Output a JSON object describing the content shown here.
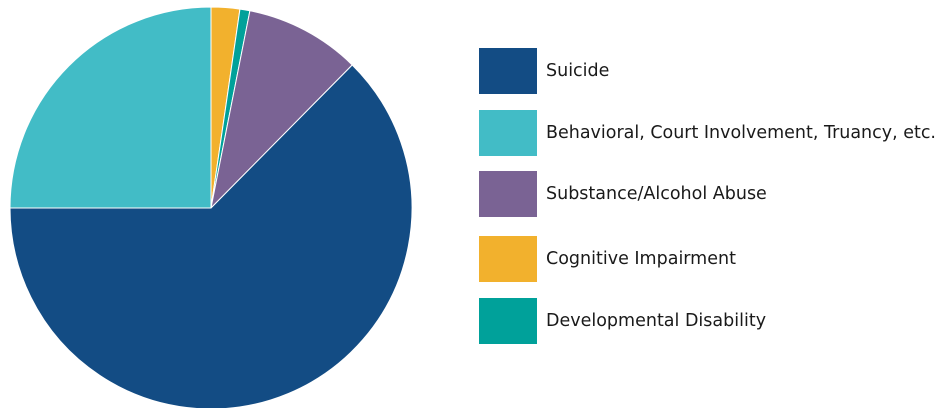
{
  "chart_data": {
    "type": "pie",
    "title": "",
    "slices": [
      {
        "label": "Cognitive Impairment",
        "value": 2.3,
        "color": "#f2b12d"
      },
      {
        "label": "Developmental Disability",
        "value": 0.8,
        "color": "#00a19a"
      },
      {
        "label": "Substance/Alcohol Abuse",
        "value": 9.3,
        "color": "#7a6394"
      },
      {
        "label": "Suicide",
        "value": 62.6,
        "color": "#134c84"
      },
      {
        "label": "Behavioral, Court Involvement, Truancy, etc.",
        "value": 25.0,
        "color": "#42bcc6"
      }
    ],
    "start_angle": "12 o'clock",
    "direction": "clockwise",
    "legend": {
      "placement": "right",
      "order": [
        "Suicide",
        "Behavioral, Court Involvement, Truancy, etc.",
        "Substance/Alcohol Abuse",
        "Cognitive Impairment",
        "Developmental Disability"
      ]
    }
  }
}
